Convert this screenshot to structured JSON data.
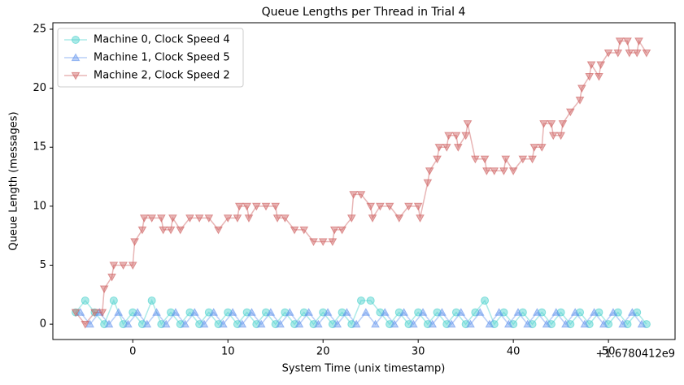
{
  "chart_data": {
    "type": "line",
    "title": "Queue Lengths per Thread in Trial 4",
    "x_label": "System Time (unix timestamp)",
    "y_label": "Queue Length (messages)",
    "x_offset_label": "+1.6780412e9",
    "xlim": [
      -8.4,
      57.0
    ],
    "xticks": [
      0,
      10,
      20,
      30,
      40,
      50
    ],
    "ylim": [
      -1.3,
      25.55
    ],
    "yticks": [
      0,
      5,
      10,
      15,
      20,
      25
    ],
    "legend": "upper left",
    "series": [
      {
        "name": "Machine 0, Clock Speed 4",
        "color": "#48d1cc",
        "marker": "circle",
        "x": [
          -6,
          -5,
          -4,
          -3,
          -2,
          -1,
          0,
          1,
          2,
          3,
          4,
          5,
          6,
          7,
          8,
          9,
          10,
          11,
          12,
          13,
          14,
          15,
          16,
          17,
          18,
          19,
          20,
          21,
          22,
          23,
          24,
          25,
          26,
          27,
          28,
          29,
          30,
          31,
          32,
          33,
          34,
          35,
          36,
          37,
          38,
          39,
          40,
          41,
          42,
          43,
          44,
          45,
          46,
          47,
          48,
          49,
          50,
          51,
          52,
          53,
          54
        ],
        "values": [
          1,
          2,
          1,
          0,
          2,
          0,
          1,
          0,
          2,
          0,
          1,
          0,
          1,
          0,
          1,
          0,
          1,
          0,
          1,
          0,
          1,
          0,
          1,
          0,
          1,
          0,
          1,
          0,
          1,
          0,
          2,
          2,
          1,
          0,
          1,
          0,
          1,
          0,
          1,
          0,
          1,
          0,
          1,
          2,
          0,
          1,
          0,
          1,
          0,
          1,
          0,
          1,
          0,
          1,
          0,
          1,
          0,
          1,
          0,
          1,
          0
        ]
      },
      {
        "name": "Machine 1, Clock Speed 5",
        "color": "#6495ed",
        "marker": "triangle-up",
        "x": [
          -5.5,
          -4.5,
          -3.5,
          -2.5,
          -1.5,
          -0.5,
          0.5,
          1.5,
          2.5,
          3.5,
          4.5,
          5.5,
          6.5,
          7.5,
          8.5,
          9.5,
          10.5,
          11.5,
          12.5,
          13.5,
          14.5,
          15.5,
          16.5,
          17.5,
          18.5,
          19.5,
          20.5,
          21.5,
          22.5,
          23.5,
          24.5,
          25.5,
          26.5,
          27.5,
          28.5,
          29.5,
          30.5,
          31.5,
          32.5,
          33.5,
          34.5,
          35.5,
          36.5,
          37.5,
          38.5,
          39.5,
          40.5,
          41.5,
          42.5,
          43.5,
          44.5,
          45.5,
          46.5,
          47.5,
          48.5,
          49.5,
          50.5,
          51.5,
          52.5,
          53.5
        ],
        "values": [
          1,
          0,
          1,
          0,
          1,
          0,
          1,
          0,
          1,
          0,
          1,
          0,
          1,
          0,
          1,
          0,
          1,
          0,
          1,
          0,
          1,
          0,
          1,
          0,
          1,
          0,
          1,
          0,
          1,
          0,
          1,
          0,
          1,
          0,
          1,
          0,
          1,
          0,
          1,
          0,
          1,
          0,
          1,
          0,
          1,
          0,
          1,
          0,
          1,
          0,
          1,
          0,
          1,
          0,
          1,
          0,
          1,
          0,
          1,
          0
        ]
      },
      {
        "name": "Machine 2, Clock Speed 2",
        "color": "#cd5c5c",
        "marker": "triangle-down",
        "x": [
          -6,
          -5,
          -4,
          -3.2,
          -3,
          -2.2,
          -2,
          -1,
          0,
          0.2,
          1,
          1.2,
          2,
          3,
          3.2,
          4,
          4.2,
          5,
          6,
          7,
          8,
          9,
          10,
          11,
          11.2,
          12,
          12.2,
          13,
          14,
          15,
          15.2,
          16,
          17,
          18,
          19,
          20,
          21,
          21.2,
          22,
          23,
          23.2,
          24,
          25,
          25.2,
          26,
          27,
          28,
          29,
          30,
          30.2,
          31,
          31.2,
          32,
          32.2,
          33,
          33.2,
          34,
          34.2,
          35,
          35.2,
          36,
          37,
          37.2,
          38,
          39,
          39.2,
          40,
          41,
          42,
          42.2,
          43,
          43.2,
          44,
          44.2,
          45,
          45.2,
          46,
          47,
          47.2,
          48,
          48.2,
          49,
          49.2,
          50,
          51,
          51.2,
          52,
          52.2,
          53,
          53.2,
          54
        ],
        "values": [
          1,
          0,
          1,
          1,
          3,
          4,
          5,
          5,
          5,
          7,
          8,
          9,
          9,
          9,
          8,
          8,
          9,
          8,
          9,
          9,
          9,
          8,
          9,
          9,
          10,
          10,
          9,
          10,
          10,
          10,
          9,
          9,
          8,
          8,
          7,
          7,
          7,
          8,
          8,
          9,
          11,
          11,
          10,
          9,
          10,
          10,
          9,
          10,
          10,
          9,
          12,
          13,
          14,
          15,
          15,
          16,
          16,
          15,
          16,
          17,
          14,
          14,
          13,
          13,
          13,
          14,
          13,
          14,
          14,
          15,
          15,
          17,
          17,
          16,
          16,
          17,
          18,
          19,
          20,
          21,
          22,
          21,
          22,
          23,
          23,
          24,
          24,
          23,
          23,
          24,
          23
        ]
      }
    ]
  }
}
